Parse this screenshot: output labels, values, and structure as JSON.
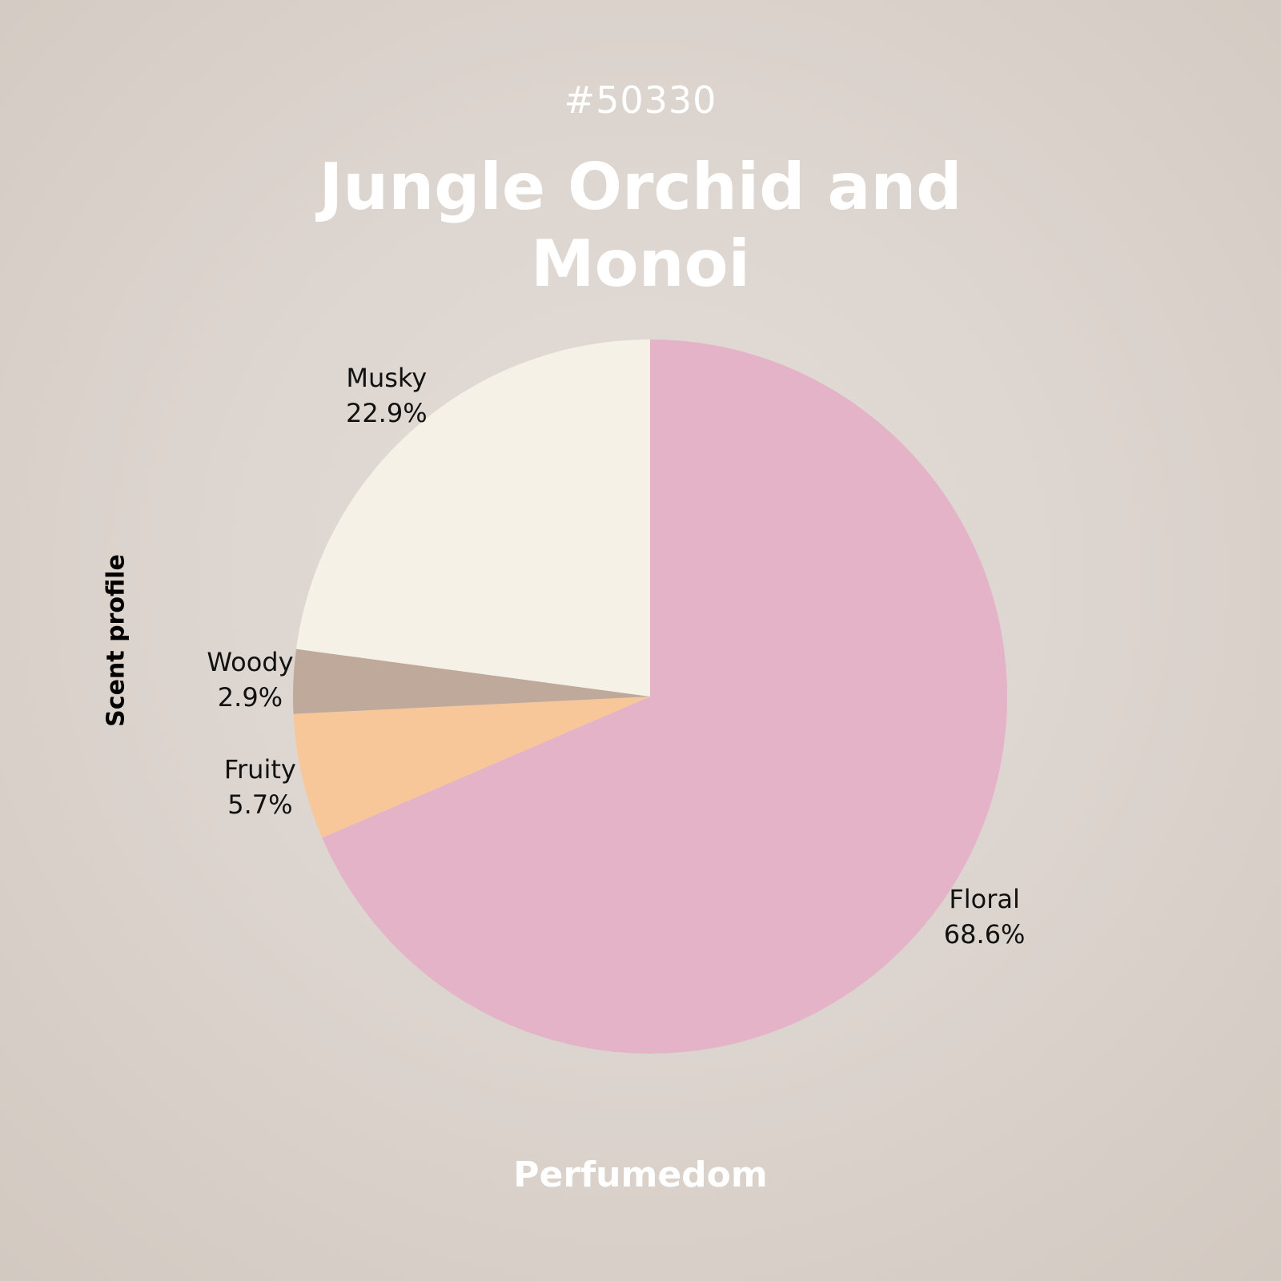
{
  "header": {
    "id": "#50330",
    "title": "Jungle Orchid and Monoi"
  },
  "footer": {
    "brand": "Perfumedom"
  },
  "chart_data": {
    "type": "pie",
    "ylabel": "Scent profile",
    "start": "12 o'clock",
    "direction": "clockwise",
    "slices": [
      {
        "name": "Floral",
        "value": 68.6,
        "label": "68.6%",
        "color": "#e4b3c8"
      },
      {
        "name": "Fruity",
        "value": 5.7,
        "label": "5.7%",
        "color": "#f7c799"
      },
      {
        "name": "Woody",
        "value": 2.9,
        "label": "2.9%",
        "color": "#bfa99b"
      },
      {
        "name": "Musky",
        "value": 22.9,
        "label": "22.9%",
        "color": "#f5f1e6"
      }
    ]
  }
}
